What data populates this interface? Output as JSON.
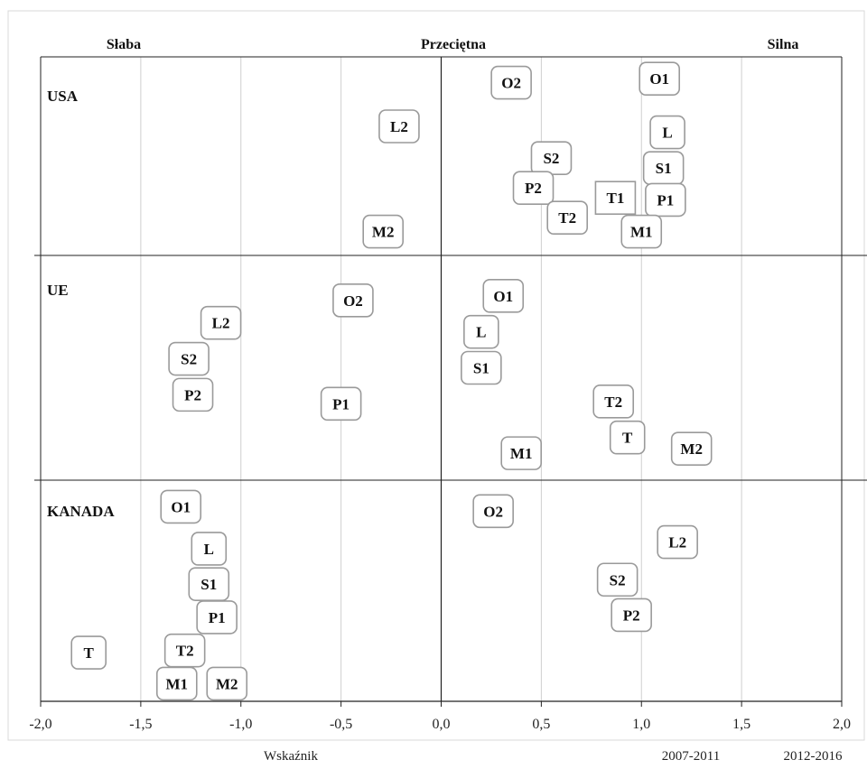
{
  "chart_data": {
    "type": "scatter",
    "xlim": [
      -2.0,
      2.0
    ],
    "x_ticks": [
      "-2,0",
      "-1,5",
      "-1,0",
      "-0,5",
      "0,0",
      "0,5",
      "1,0",
      "1,5",
      "2,0"
    ],
    "x_tick_values": [
      -2.0,
      -1.5,
      -1.0,
      -0.5,
      0.0,
      0.5,
      1.0,
      1.5,
      2.0
    ],
    "grid": true,
    "bands": [
      "Słaba",
      "Przeciętna",
      "Silna"
    ],
    "xlabel": "Wskaźnik",
    "legend": [
      "2007-2011",
      "2012-2016"
    ],
    "panels": [
      {
        "name": "USA",
        "points": [
          {
            "label": "O2",
            "x": 0.35,
            "y": 0.87,
            "series": "2012-2016"
          },
          {
            "label": "O1",
            "x": 1.09,
            "y": 0.89,
            "series": "2012-2016"
          },
          {
            "label": "L2",
            "x": -0.21,
            "y": 0.65,
            "series": "2012-2016"
          },
          {
            "label": "L",
            "x": 1.13,
            "y": 0.62,
            "series": "2012-2016"
          },
          {
            "label": "S2",
            "x": 0.55,
            "y": 0.49,
            "series": "2012-2016"
          },
          {
            "label": "S1",
            "x": 1.11,
            "y": 0.44,
            "series": "2012-2016"
          },
          {
            "label": "P2",
            "x": 0.46,
            "y": 0.34,
            "series": "2012-2016"
          },
          {
            "label": "T1",
            "x": 0.87,
            "y": 0.29,
            "series": "2007-2011"
          },
          {
            "label": "P1",
            "x": 1.12,
            "y": 0.28,
            "series": "2012-2016"
          },
          {
            "label": "T2",
            "x": 0.63,
            "y": 0.19,
            "series": "2012-2016"
          },
          {
            "label": "M2",
            "x": -0.29,
            "y": 0.12,
            "series": "2012-2016"
          },
          {
            "label": "M1",
            "x": 1.0,
            "y": 0.12,
            "series": "2012-2016"
          }
        ]
      },
      {
        "name": "UE",
        "points": [
          {
            "label": "O2",
            "x": -0.44,
            "y": 0.8,
            "series": "2012-2016"
          },
          {
            "label": "O1",
            "x": 0.31,
            "y": 0.82,
            "series": "2012-2016"
          },
          {
            "label": "L2",
            "x": -1.1,
            "y": 0.7,
            "series": "2012-2016"
          },
          {
            "label": "L",
            "x": 0.2,
            "y": 0.66,
            "series": "2012-2016"
          },
          {
            "label": "S2",
            "x": -1.26,
            "y": 0.54,
            "series": "2012-2016"
          },
          {
            "label": "S1",
            "x": 0.2,
            "y": 0.5,
            "series": "2012-2016"
          },
          {
            "label": "P2",
            "x": -1.24,
            "y": 0.38,
            "series": "2012-2016"
          },
          {
            "label": "P1",
            "x": -0.5,
            "y": 0.34,
            "series": "2012-2016"
          },
          {
            "label": "T2",
            "x": 0.86,
            "y": 0.35,
            "series": "2012-2016"
          },
          {
            "label": "T",
            "x": 0.93,
            "y": 0.19,
            "series": "2012-2016"
          },
          {
            "label": "M2",
            "x": 1.25,
            "y": 0.14,
            "series": "2012-2016"
          },
          {
            "label": "M1",
            "x": 0.4,
            "y": 0.12,
            "series": "2012-2016"
          }
        ]
      },
      {
        "name": "KANADA",
        "points": [
          {
            "label": "O1",
            "x": -1.3,
            "y": 0.88,
            "series": "2012-2016"
          },
          {
            "label": "O2",
            "x": 0.26,
            "y": 0.86,
            "series": "2012-2016"
          },
          {
            "label": "L",
            "x": -1.16,
            "y": 0.69,
            "series": "2012-2016"
          },
          {
            "label": "L2",
            "x": 1.18,
            "y": 0.72,
            "series": "2012-2016"
          },
          {
            "label": "S1",
            "x": -1.16,
            "y": 0.53,
            "series": "2012-2016"
          },
          {
            "label": "S2",
            "x": 0.88,
            "y": 0.55,
            "series": "2012-2016"
          },
          {
            "label": "P1",
            "x": -1.12,
            "y": 0.38,
            "series": "2012-2016"
          },
          {
            "label": "P2",
            "x": 0.95,
            "y": 0.39,
            "series": "2012-2016"
          },
          {
            "label": "T2",
            "x": -1.28,
            "y": 0.23,
            "series": "2012-2016"
          },
          {
            "label": "T",
            "x": -1.76,
            "y": 0.22,
            "series": "2012-2016"
          },
          {
            "label": "M1",
            "x": -1.32,
            "y": 0.08,
            "series": "2012-2016"
          },
          {
            "label": "M2",
            "x": -1.07,
            "y": 0.08,
            "series": "2012-2016"
          }
        ]
      }
    ]
  }
}
